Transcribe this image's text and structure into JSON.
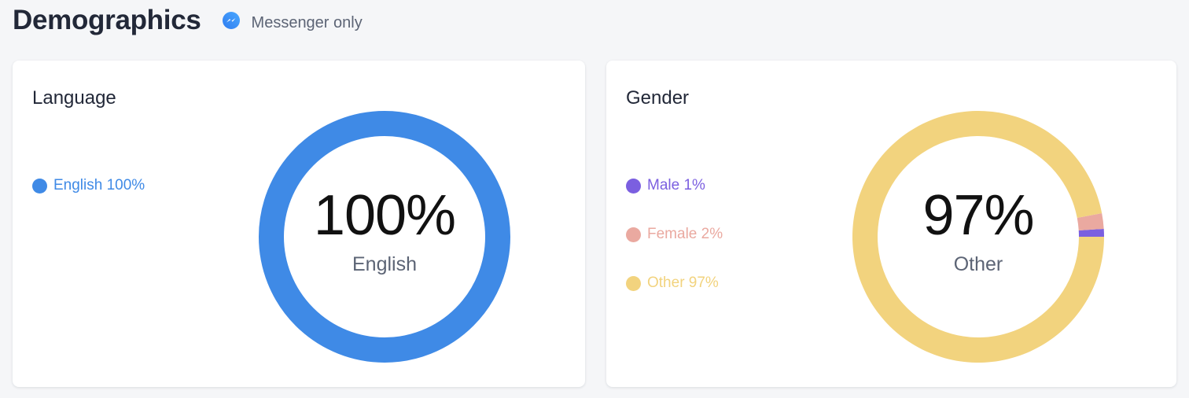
{
  "header": {
    "title": "Demographics",
    "platform_icon": "messenger-icon",
    "subtitle": "Messenger only"
  },
  "language": {
    "title": "Language",
    "legend": [
      {
        "label": "English 100%",
        "color": "#3f8ae6"
      }
    ],
    "center_value": "100%",
    "center_label": "English",
    "chart_data": {
      "type": "pie",
      "categories": [
        "English"
      ],
      "values": [
        100
      ],
      "colors": [
        "#3f8ae6"
      ]
    }
  },
  "gender": {
    "title": "Gender",
    "legend": [
      {
        "label": "Male 1%",
        "color": "#7b5fe0"
      },
      {
        "label": "Female 2%",
        "color": "#eaa9a0"
      },
      {
        "label": "Other 97%",
        "color": "#f2d37e"
      }
    ],
    "center_value": "97%",
    "center_label": "Other",
    "chart_data": {
      "type": "pie",
      "categories": [
        "Male",
        "Female",
        "Other"
      ],
      "values": [
        1,
        2,
        97
      ],
      "colors": [
        "#7b5fe0",
        "#eaa9a0",
        "#f2d37e"
      ]
    }
  }
}
